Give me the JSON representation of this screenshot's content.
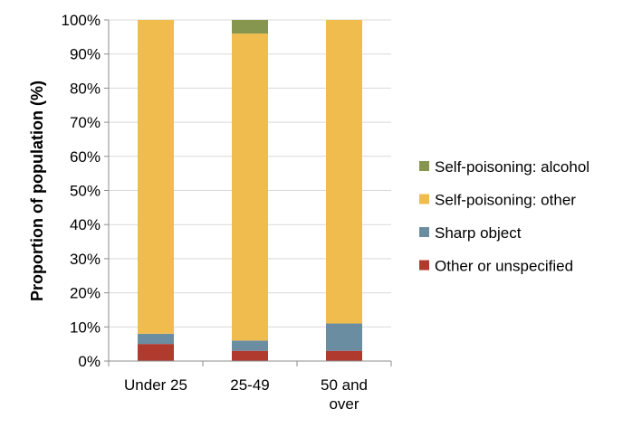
{
  "chart_data": {
    "type": "bar",
    "stacked": true,
    "normalized": true,
    "categories": [
      [
        "Under 25"
      ],
      [
        "25-49"
      ],
      [
        "50 and",
        "over"
      ]
    ],
    "ylabel": "Proportion of population (%)",
    "ylim": [
      0,
      100
    ],
    "yticks": [
      "0%",
      "10%",
      "20%",
      "30%",
      "40%",
      "50%",
      "60%",
      "70%",
      "80%",
      "90%",
      "100%"
    ],
    "grid": true,
    "legend": "right",
    "series": [
      {
        "name": "Other or unspecified",
        "color": "#b03a2e",
        "values": [
          5,
          3,
          3
        ]
      },
      {
        "name": "Sharp object",
        "color": "#6a8da1",
        "values": [
          3,
          3,
          8
        ]
      },
      {
        "name": "Self-poisoning: other",
        "color": "#f0bc4d",
        "values": [
          92,
          90,
          89
        ]
      },
      {
        "name": "Self-poisoning: alcohol",
        "color": "#86964f",
        "values": [
          0,
          4,
          0
        ]
      }
    ]
  }
}
